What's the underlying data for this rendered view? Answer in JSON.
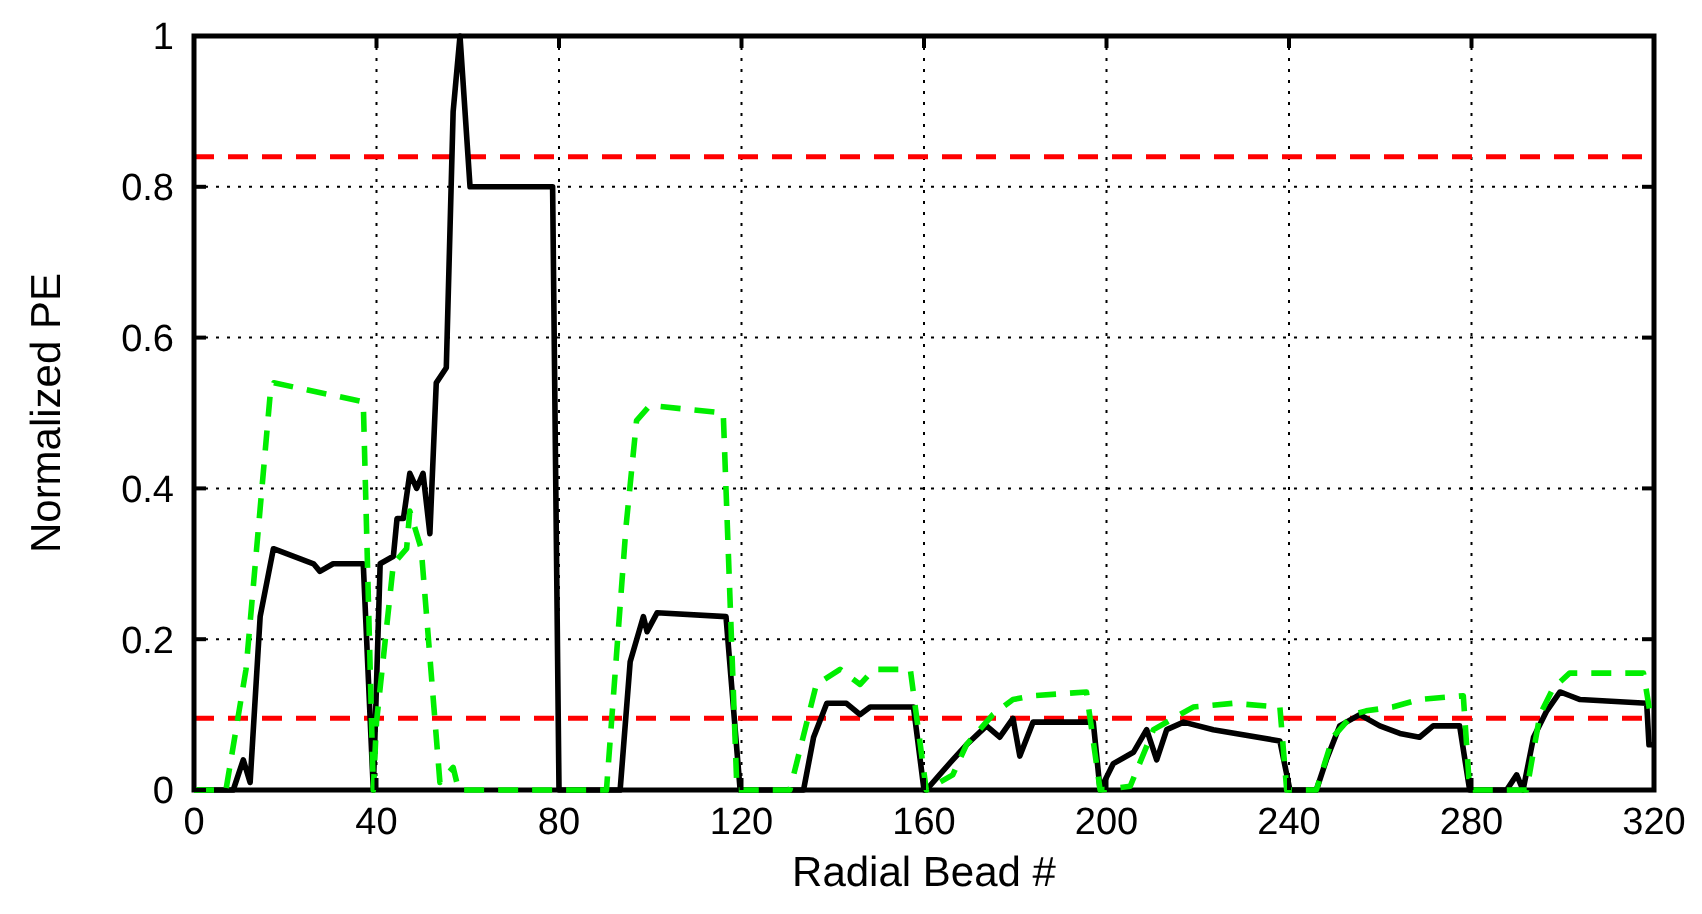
{
  "chart_data": {
    "type": "line",
    "xlabel": "Radial Bead #",
    "ylabel": "Normalized PE",
    "xlim": [
      0,
      320
    ],
    "ylim": [
      0,
      1
    ],
    "xticks": [
      0,
      40,
      80,
      120,
      160,
      200,
      240,
      280,
      320
    ],
    "yticks": [
      0,
      0.2,
      0.4,
      0.6,
      0.8,
      1
    ],
    "grid": true,
    "ref_lines": [
      {
        "axis": "y",
        "value": 0.84,
        "color": "#ff0000",
        "line_style": "dashed"
      },
      {
        "axis": "y",
        "value": 0.095,
        "color": "#ff0000",
        "line_style": "dashed"
      }
    ],
    "series": [
      {
        "color": "#000000",
        "line_style": "solid",
        "x": [
          0,
          8.6,
          10.8,
          12.3,
          14.5,
          17.4,
          26.2,
          27.6,
          30.5,
          37.1,
          39.3,
          40.8,
          43.7,
          44.5,
          45.9,
          47.3,
          48.8,
          50.2,
          51.7,
          53.1,
          55.3,
          56.8,
          58.3,
          60.5,
          67.5,
          78.6,
          80,
          93.4,
          95.6,
          98.5,
          99.3,
          101.5,
          116.6,
          119.7,
          133.6,
          135.8,
          138.7,
          143,
          146,
          148.2,
          157.7,
          160,
          160.5,
          163.4,
          166.3,
          169.3,
          173.7,
          176.6,
          179.5,
          181,
          183.9,
          197.1,
          198.6,
          201.5,
          205.9,
          208.8,
          211,
          213.2,
          216.9,
          223.4,
          238,
          240.2,
          246,
          248.2,
          251.1,
          255.5,
          259.9,
          264.3,
          268.6,
          271.6,
          277.4,
          279.6,
          287.7,
          289.9,
          291.3,
          293.6,
          296.5,
          299.4,
          301.6,
          303.8,
          318.4,
          318.9,
          320
        ],
        "values": [
          0,
          0,
          0.04,
          0.01,
          0.23,
          0.32,
          0.3,
          0.29,
          0.3,
          0.3,
          0,
          0.3,
          0.31,
          0.36,
          0.36,
          0.42,
          0.4,
          0.42,
          0.34,
          0.54,
          0.56,
          0.9,
          1,
          0.8,
          0.8,
          0.8,
          0,
          0,
          0.17,
          0.23,
          0.21,
          0.235,
          0.23,
          0,
          0,
          0.07,
          0.115,
          0.115,
          0.1,
          0.11,
          0.11,
          0,
          0,
          0.02,
          0.04,
          0.06,
          0.085,
          0.07,
          0.095,
          0.045,
          0.09,
          0.09,
          0,
          0.035,
          0.05,
          0.08,
          0.04,
          0.08,
          0.09,
          0.08,
          0.065,
          0,
          0,
          0.04,
          0.085,
          0.1,
          0.085,
          0.075,
          0.07,
          0.085,
          0.085,
          0,
          0,
          0.02,
          0,
          0.07,
          0.105,
          0.13,
          0.125,
          0.12,
          0.115,
          0.06,
          0.06
        ]
      },
      {
        "color": "#00ee00",
        "line_style": "dashed",
        "x": [
          0,
          7,
          11.4,
          16.7,
          17.5,
          37.1,
          39.3,
          40,
          43.7,
          46.6,
          47.3,
          49.8,
          53.9,
          56.8,
          58,
          90.4,
          94.7,
          97,
          99.9,
          116,
          119,
          130.6,
          136.4,
          141.6,
          146,
          149,
          157,
          160.5,
          166.3,
          169.3,
          175.1,
          179.5,
          183.9,
          195.6,
          198.6,
          205.2,
          210.3,
          216.1,
          219,
          227.8,
          238,
          239.5,
          246,
          249.6,
          254,
          256.9,
          262.7,
          268.6,
          278.2,
          279.6,
          292.1,
          295,
          297.9,
          301.5,
          317.7,
          319.2
        ],
        "values": [
          0,
          0,
          0.16,
          0.525,
          0.54,
          0.515,
          0,
          0.09,
          0.3,
          0.32,
          0.37,
          0.32,
          0.01,
          0.03,
          0,
          0,
          0.35,
          0.49,
          0.51,
          0.5,
          0,
          0,
          0.14,
          0.16,
          0.14,
          0.16,
          0.16,
          0,
          0.02,
          0.06,
          0.1,
          0.12,
          0.125,
          0.13,
          0,
          0.005,
          0.08,
          0.1,
          0.11,
          0.115,
          0.11,
          0,
          0,
          0.07,
          0.1,
          0.105,
          0.11,
          0.12,
          0.125,
          0,
          0,
          0.1,
          0.135,
          0.155,
          0.155,
          0.1
        ]
      }
    ]
  }
}
